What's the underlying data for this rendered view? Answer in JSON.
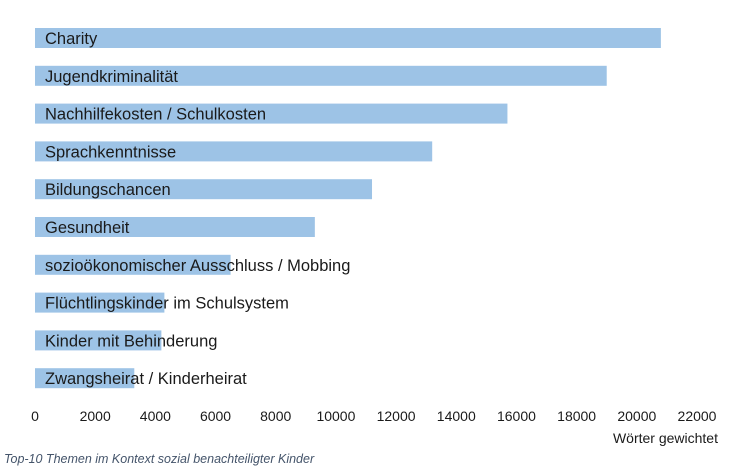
{
  "chart_data": {
    "type": "bar",
    "orientation": "horizontal",
    "categories": [
      "Charity",
      "Jugendkriminalität",
      "Nachhilfekosten / Schulkosten",
      "Sprachkenntnisse",
      "Bildungschancen",
      "Gesundheit",
      "sozioökonomischer Ausschluss / Mobbing",
      "Flüchtlingskinder im Schulsystem",
      "Kinder mit Behinderung",
      "Zwangsheirat / Kinderheirat"
    ],
    "values": [
      20800,
      19000,
      15700,
      13200,
      11200,
      9300,
      6500,
      4300,
      4200,
      3300
    ],
    "xlabel": "Wörter gewichtet",
    "ylabel": "",
    "xlim": [
      0,
      22000
    ],
    "xticks": [
      "0",
      "2000",
      "4000",
      "6000",
      "8000",
      "10000",
      "12000",
      "14000",
      "16000",
      "18000",
      "20000",
      "22000"
    ],
    "bar_color": "#9dc3e6",
    "grid": false,
    "legend": "none"
  },
  "caption": "Top-10 Themen im Kontext sozial benachteiligter Kinder"
}
